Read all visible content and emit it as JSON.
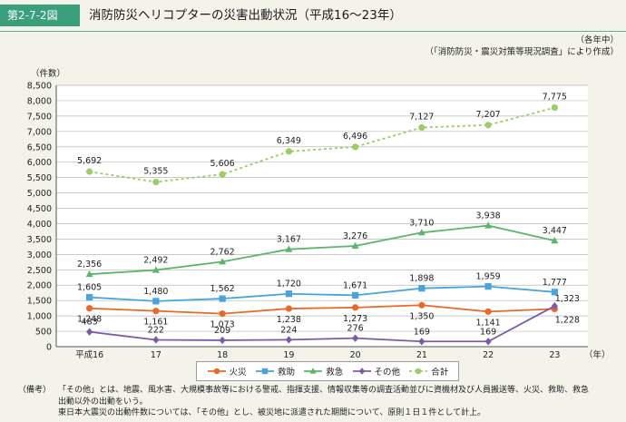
{
  "figure": {
    "tag": "第2-7-2図",
    "title": "消防防災ヘリコプターの災害出動状況（平成16〜23年）"
  },
  "unit_note": {
    "line1": "（各年中）",
    "line2": "（「消防防災・震災対策等現況調査」により作成）"
  },
  "notes": {
    "tag": "（備考）",
    "line1": "「その他」とは、地震、風水害、大規模事故等における警戒、指揮支援、情報収集等の調査活動並びに資機材及び人員搬送等、火災、救助、救急",
    "line2": "出動以外の出動をいう。",
    "line3": "東日本大震災の出動件数については、「その他」とし、被災地に派遣された期間について、原則１日１件として計上。"
  },
  "colors": {
    "火災": "#e8692c",
    "救助": "#4aa3db",
    "救急": "#5bb56a",
    "その他": "#7b5aa6",
    "合計": "#9ccc65"
  },
  "chart_data": {
    "type": "line",
    "categories": [
      "平成16",
      "17",
      "18",
      "19",
      "20",
      "21",
      "22",
      "23"
    ],
    "xlabel": "（年）",
    "ylabel": "（件数）",
    "ylim": [
      0,
      8500
    ],
    "yticks": [
      "0",
      "500",
      "1,000",
      "1,500",
      "2,000",
      "2,500",
      "3,000",
      "3,500",
      "4,000",
      "4,500",
      "5,000",
      "5,500",
      "6,000",
      "6,500",
      "7,000",
      "7,500",
      "8,000",
      "8,500"
    ],
    "grid": true,
    "legend": "bottom",
    "series": [
      {
        "name": "火災",
        "marker": "circle",
        "dash": false,
        "values": [
          1248,
          1161,
          1073,
          1238,
          1273,
          1350,
          1141,
          1228
        ],
        "labels": [
          "1,248",
          "1,161",
          "1,073",
          "1,238",
          "1,273",
          "1,350",
          "1,141",
          "1,228"
        ]
      },
      {
        "name": "救助",
        "marker": "square",
        "dash": false,
        "values": [
          1605,
          1480,
          1562,
          1720,
          1671,
          1898,
          1959,
          1777
        ],
        "labels": [
          "1,605",
          "1,480",
          "1,562",
          "1,720",
          "1,671",
          "1,898",
          "1,959",
          "1,777"
        ]
      },
      {
        "name": "救急",
        "marker": "triangle",
        "dash": false,
        "values": [
          2356,
          2492,
          2762,
          3167,
          3276,
          3710,
          3938,
          3447
        ],
        "labels": [
          "2,356",
          "2,492",
          "2,762",
          "3,167",
          "3,276",
          "3,710",
          "3,938",
          "3,447"
        ]
      },
      {
        "name": "その他",
        "marker": "diamond",
        "dash": false,
        "values": [
          483,
          222,
          209,
          224,
          276,
          169,
          169,
          1323
        ],
        "labels": [
          "483",
          "222",
          "209",
          "224",
          "276",
          "169",
          "169",
          "1,323"
        ]
      },
      {
        "name": "合計",
        "marker": "circle",
        "dash": true,
        "values": [
          5692,
          5355,
          5606,
          6349,
          6496,
          7127,
          7207,
          7775
        ],
        "labels": [
          "5,692",
          "5,355",
          "5,606",
          "6,349",
          "6,496",
          "7,127",
          "7,207",
          "7,775"
        ]
      }
    ]
  }
}
